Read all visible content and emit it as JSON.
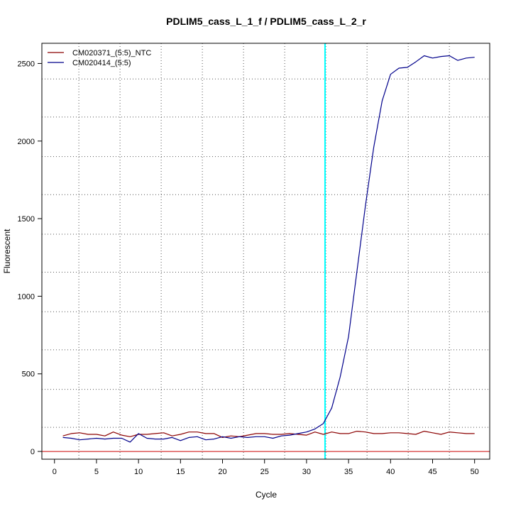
{
  "chart_data": {
    "type": "line",
    "title": "PDLIM5_cass_L_1_f / PDLIM5_cass_L_2_r",
    "xlabel": "Cycle",
    "ylabel": "Fluorescent",
    "xlim": [
      -1.5,
      51.8
    ],
    "ylim": [
      -50,
      2630
    ],
    "x_ticks": [
      0,
      5,
      10,
      15,
      20,
      25,
      30,
      35,
      40,
      45,
      50
    ],
    "y_ticks": [
      0,
      500,
      1000,
      1500,
      2000,
      2500
    ],
    "grid": true,
    "legend_position": "top-left",
    "threshold_x": 32.2,
    "threshold_color": "#00ffff",
    "baseline_y": 0,
    "baseline_color": "#cc0000",
    "x": [
      1,
      2,
      3,
      4,
      5,
      6,
      7,
      8,
      9,
      10,
      11,
      12,
      13,
      14,
      15,
      16,
      17,
      18,
      19,
      20,
      21,
      22,
      23,
      24,
      25,
      26,
      27,
      28,
      29,
      30,
      31,
      32,
      33,
      34,
      35,
      36,
      37,
      38,
      39,
      40,
      41,
      42,
      43,
      44,
      45,
      46,
      47,
      48,
      49,
      50
    ],
    "series": [
      {
        "name": "CM020371_(5:5)_NTC",
        "color": "#8b0000",
        "values": [
          100,
          115,
          120,
          110,
          110,
          100,
          125,
          105,
          95,
          110,
          110,
          115,
          120,
          100,
          110,
          125,
          125,
          115,
          115,
          90,
          100,
          95,
          105,
          115,
          115,
          110,
          110,
          115,
          110,
          105,
          125,
          110,
          125,
          115,
          115,
          130,
          125,
          115,
          115,
          120,
          120,
          115,
          110,
          130,
          120,
          110,
          125,
          120,
          115,
          115
        ]
      },
      {
        "name": "CM020414_(5:5)",
        "color": "#00008b",
        "values": [
          90,
          85,
          75,
          80,
          85,
          80,
          85,
          85,
          60,
          115,
          85,
          80,
          80,
          90,
          70,
          90,
          95,
          75,
          80,
          95,
          85,
          95,
          90,
          95,
          95,
          85,
          100,
          105,
          115,
          125,
          145,
          180,
          280,
          480,
          740,
          1160,
          1580,
          1960,
          2260,
          2430,
          2470,
          2475,
          2510,
          2550,
          2535,
          2545,
          2550,
          2520,
          2535,
          2540
        ]
      }
    ]
  }
}
